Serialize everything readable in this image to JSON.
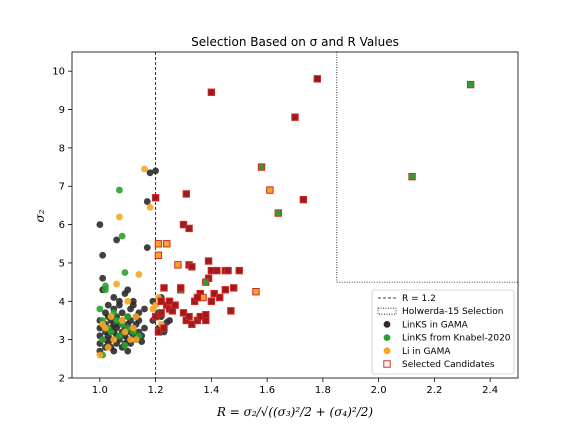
{
  "chart_data": {
    "type": "scatter",
    "title": "Selection Based on σ and R Values",
    "xlabel": "R = σ₂/√((σ₃)²/2 + (σ₄)²/2)",
    "ylabel": "σ₂",
    "xlim": [
      0.9,
      2.5
    ],
    "ylim": [
      2,
      10.5
    ],
    "x_ticks": [
      "1.0",
      "1.2",
      "1.4",
      "1.6",
      "1.8",
      "2.0",
      "2.2",
      "2.4"
    ],
    "y_ticks": [
      "2",
      "3",
      "4",
      "5",
      "6",
      "7",
      "8",
      "9",
      "10"
    ],
    "grid": false,
    "legend_position": "lower-right",
    "reference_line": {
      "name": "R = 1.2",
      "x": 1.2,
      "style": "dashed"
    },
    "selection_region": {
      "name": "Holwerda-15 Selection",
      "x": [
        1.85,
        2.5
      ],
      "y": [
        4.5,
        10.5
      ],
      "style": "dotted"
    },
    "colors": {
      "links_gama": "#2b2b2b",
      "links_knabel": "#2ca02c",
      "li_gama": "#f5a623",
      "selected": "#d62728"
    },
    "series": [
      {
        "name": "LinKS in GAMA",
        "marker": "circle",
        "points": [
          [
            1.0,
            3.1
          ],
          [
            1.0,
            3.3
          ],
          [
            1.0,
            3.5
          ],
          [
            1.0,
            2.9
          ],
          [
            1.0,
            2.7
          ],
          [
            1.01,
            4.6
          ],
          [
            1.0,
            6.0
          ],
          [
            1.01,
            5.2
          ],
          [
            1.01,
            4.3
          ],
          [
            1.02,
            3.2
          ],
          [
            1.02,
            3.4
          ],
          [
            1.02,
            3.0
          ],
          [
            1.02,
            2.8
          ],
          [
            1.02,
            3.7
          ],
          [
            1.03,
            3.1
          ],
          [
            1.03,
            3.6
          ],
          [
            1.03,
            2.9
          ],
          [
            1.03,
            3.9
          ],
          [
            1.04,
            3.3
          ],
          [
            1.04,
            3.5
          ],
          [
            1.04,
            2.8
          ],
          [
            1.04,
            3.0
          ],
          [
            1.05,
            3.2
          ],
          [
            1.05,
            3.4
          ],
          [
            1.05,
            3.8
          ],
          [
            1.05,
            2.7
          ],
          [
            1.05,
            4.1
          ],
          [
            1.06,
            3.1
          ],
          [
            1.06,
            3.3
          ],
          [
            1.06,
            3.6
          ],
          [
            1.06,
            2.9
          ],
          [
            1.06,
            5.6
          ],
          [
            1.07,
            3.0
          ],
          [
            1.07,
            3.4
          ],
          [
            1.07,
            3.9
          ],
          [
            1.07,
            4.0
          ],
          [
            1.08,
            3.2
          ],
          [
            1.08,
            3.5
          ],
          [
            1.08,
            2.8
          ],
          [
            1.08,
            3.7
          ],
          [
            1.09,
            3.1
          ],
          [
            1.09,
            3.3
          ],
          [
            1.09,
            4.2
          ],
          [
            1.09,
            2.9
          ],
          [
            1.1,
            3.0
          ],
          [
            1.1,
            3.4
          ],
          [
            1.1,
            3.6
          ],
          [
            1.1,
            4.3
          ],
          [
            1.1,
            2.7
          ],
          [
            1.11,
            3.2
          ],
          [
            1.11,
            3.5
          ],
          [
            1.11,
            3.8
          ],
          [
            1.11,
            2.9
          ],
          [
            1.12,
            3.1
          ],
          [
            1.12,
            3.3
          ],
          [
            1.12,
            3.9
          ],
          [
            1.12,
            4.0
          ],
          [
            1.13,
            3.0
          ],
          [
            1.13,
            3.6
          ],
          [
            1.13,
            3.4
          ],
          [
            1.14,
            3.2
          ],
          [
            1.14,
            3.7
          ],
          [
            1.14,
            3.5
          ],
          [
            1.15,
            3.1
          ],
          [
            1.15,
            2.95
          ],
          [
            1.16,
            3.8
          ],
          [
            1.16,
            3.3
          ],
          [
            1.17,
            5.4
          ],
          [
            1.17,
            6.6
          ],
          [
            1.18,
            7.35
          ],
          [
            1.19,
            4.0
          ],
          [
            1.2,
            7.4
          ],
          [
            1.19,
            3.5
          ],
          [
            1.21,
            3.3
          ],
          [
            1.21,
            3.7
          ],
          [
            1.22,
            4.1
          ],
          [
            1.22,
            3.6
          ],
          [
            1.23,
            3.2
          ],
          [
            1.24,
            3.45
          ],
          [
            1.25,
            3.5
          ]
        ]
      },
      {
        "name": "LinKS from Knabel-2020",
        "marker": "circle",
        "points": [
          [
            1.0,
            3.8
          ],
          [
            1.01,
            3.5
          ],
          [
            1.01,
            3.0
          ],
          [
            1.02,
            4.4
          ],
          [
            1.02,
            4.3
          ],
          [
            1.03,
            3.3
          ],
          [
            1.04,
            3.2
          ],
          [
            1.05,
            3.7
          ],
          [
            1.06,
            3.5
          ],
          [
            1.07,
            3.1
          ],
          [
            1.07,
            6.9
          ],
          [
            1.08,
            5.7
          ],
          [
            1.08,
            3.4
          ],
          [
            1.09,
            4.75
          ],
          [
            1.1,
            3.3
          ],
          [
            1.1,
            3.6
          ],
          [
            1.12,
            3.2
          ],
          [
            1.14,
            3.1
          ],
          [
            1.01,
            2.6
          ],
          [
            1.09,
            2.85
          ]
        ]
      },
      {
        "name": "Li in GAMA",
        "marker": "circle",
        "points": [
          [
            1.0,
            2.6
          ],
          [
            1.01,
            3.4
          ],
          [
            1.02,
            3.3
          ],
          [
            1.03,
            2.8
          ],
          [
            1.04,
            3.6
          ],
          [
            1.05,
            3.0
          ],
          [
            1.06,
            4.45
          ],
          [
            1.07,
            6.2
          ],
          [
            1.08,
            3.5
          ],
          [
            1.09,
            3.2
          ],
          [
            1.1,
            4.0
          ],
          [
            1.11,
            3.0
          ],
          [
            1.12,
            3.3
          ],
          [
            1.13,
            3.6
          ],
          [
            1.14,
            4.7
          ],
          [
            1.16,
            7.45
          ],
          [
            1.18,
            6.45
          ],
          [
            1.19,
            3.8
          ],
          [
            1.2,
            3.9
          ],
          [
            1.21,
            4.1
          ],
          [
            1.22,
            3.4
          ],
          [
            1.13,
            3.0
          ]
        ]
      },
      {
        "name": "Selected Candidates",
        "marker": "square",
        "points": [
          [
            1.2,
            3.6
          ],
          [
            1.2,
            6.7
          ],
          [
            1.21,
            5.5
          ],
          [
            1.21,
            5.2
          ],
          [
            1.21,
            3.2
          ],
          [
            1.22,
            4.0
          ],
          [
            1.22,
            3.7
          ],
          [
            1.23,
            4.35
          ],
          [
            1.23,
            3.3
          ],
          [
            1.24,
            3.9
          ],
          [
            1.24,
            5.5
          ],
          [
            1.25,
            4.0
          ],
          [
            1.25,
            3.8
          ],
          [
            1.26,
            3.75
          ],
          [
            1.27,
            3.9
          ],
          [
            1.28,
            4.95
          ],
          [
            1.29,
            4.3
          ],
          [
            1.3,
            6.0
          ],
          [
            1.3,
            3.7
          ],
          [
            1.31,
            6.8
          ],
          [
            1.31,
            3.5
          ],
          [
            1.32,
            5.9
          ],
          [
            1.32,
            4.95
          ],
          [
            1.32,
            3.6
          ],
          [
            1.33,
            4.9
          ],
          [
            1.33,
            3.4
          ],
          [
            1.34,
            4.0
          ],
          [
            1.35,
            3.5
          ],
          [
            1.36,
            3.6
          ],
          [
            1.36,
            4.2
          ],
          [
            1.37,
            4.1
          ],
          [
            1.38,
            3.5
          ],
          [
            1.38,
            3.65
          ],
          [
            1.39,
            4.6
          ],
          [
            1.39,
            5.05
          ],
          [
            1.4,
            4.8
          ],
          [
            1.4,
            9.45
          ],
          [
            1.41,
            4.2
          ],
          [
            1.42,
            4.8
          ],
          [
            1.43,
            4.1
          ],
          [
            1.45,
            4.8
          ],
          [
            1.45,
            4.3
          ],
          [
            1.46,
            4.8
          ],
          [
            1.47,
            3.75
          ],
          [
            1.48,
            4.35
          ],
          [
            1.5,
            4.8
          ],
          [
            1.56,
            4.25
          ],
          [
            1.58,
            7.5
          ],
          [
            1.61,
            6.9
          ],
          [
            1.64,
            6.3
          ],
          [
            1.7,
            8.8
          ],
          [
            1.73,
            6.65
          ],
          [
            1.78,
            9.8
          ],
          [
            2.12,
            7.25
          ],
          [
            2.33,
            9.65
          ],
          [
            1.4,
            4.0
          ],
          [
            1.35,
            4.1
          ],
          [
            1.38,
            4.5
          ],
          [
            1.29,
            4.35
          ]
        ],
        "fills": {
          "1.20,6.7": "#f5a623",
          "1.21,5.5": "#f5a623",
          "1.21,5.2": "#f5a623",
          "1.24,5.5": "#f5a623",
          "1.28,4.95": "#f5a623",
          "1.29,4.3": "#2ca02c",
          "1.37,4.1": "#f5a623",
          "1.56,4.25": "#f5a623",
          "1.58,7.5": "#2ca02c",
          "1.61,6.9": "#f5a623",
          "1.64,6.3": "#2ca02c",
          "2.12,7.25": "#2ca02c",
          "2.33,9.65": "#2ca02c",
          "1.38,4.5": "#2ca02c",
          "1.78,9.8": "#8b1a1a"
        }
      }
    ]
  }
}
